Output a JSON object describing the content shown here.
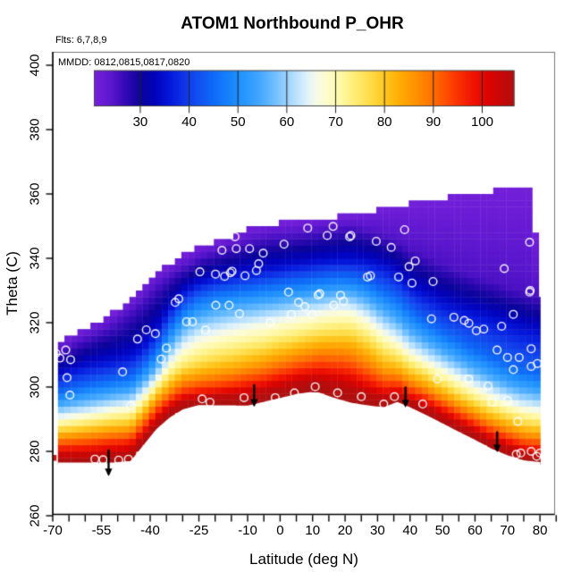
{
  "chart_data": {
    "type": "heatmap",
    "title": "ATOM1 Northbound P_OHR",
    "xlabel": "Latitude (deg N)",
    "ylabel": "Theta (C)",
    "annotations": {
      "flights": "Flts: 6,7,8,9",
      "dates": "MMDD: 0812,0815,0817,0820"
    },
    "xaxis": {
      "range": [
        -70,
        85
      ],
      "tick_step_minor": 5,
      "tick_labels": [
        -70,
        -55,
        -40,
        -25,
        -10,
        0,
        10,
        20,
        30,
        40,
        50,
        60,
        70,
        80
      ]
    },
    "yaxis": {
      "range": [
        260,
        404
      ],
      "tick_labels": [
        260,
        280,
        300,
        320,
        340,
        360,
        380,
        400
      ]
    },
    "colorbar": {
      "range": [
        20.5,
        106.5
      ],
      "ticks": [
        30,
        40,
        50,
        60,
        70,
        80,
        90,
        100
      ],
      "position": "top"
    },
    "palette_stops": [
      [
        20,
        "#7B22DD"
      ],
      [
        24,
        "#5A16CC"
      ],
      [
        27,
        "#3109B4"
      ],
      [
        30,
        "#0B049A"
      ],
      [
        33,
        "#0202BC"
      ],
      [
        36,
        "#0418DC"
      ],
      [
        40,
        "#1240EC"
      ],
      [
        45,
        "#0E6CF8"
      ],
      [
        50,
        "#1E90FF"
      ],
      [
        54,
        "#3FA5FF"
      ],
      [
        58,
        "#79C3FF"
      ],
      [
        61,
        "#AEDCFF"
      ],
      [
        64,
        "#DFF2FB"
      ],
      [
        66,
        "#F6FBE8"
      ],
      [
        68,
        "#FEFCCE"
      ],
      [
        71,
        "#FFF8A6"
      ],
      [
        74,
        "#FFEC72"
      ],
      [
        77,
        "#FFDC48"
      ],
      [
        80,
        "#FFC61E"
      ],
      [
        83,
        "#FFAD05"
      ],
      [
        86,
        "#FF9400"
      ],
      [
        89,
        "#FF7800"
      ],
      [
        92,
        "#FF5500"
      ],
      [
        95,
        "#FB3000"
      ],
      [
        98,
        "#F01400"
      ],
      [
        101,
        "#DE0400"
      ],
      [
        104,
        "#C50808"
      ],
      [
        108,
        "#A81111"
      ]
    ],
    "field": {
      "description": "Each profile row: [lat, theta_bottom, theta at P_OHR levels 105,95,85,75,65,55,45,35,25, theta_top]",
      "levels": [
        105,
        95,
        85,
        75,
        65,
        55,
        45,
        35,
        25
      ],
      "profiles": [
        [
          -69.6,
          276.5,
          278.5,
          281.5,
          284.5,
          287.5,
          290.5,
          294,
          298,
          303.5,
          310,
          313.5
        ],
        [
          -60,
          276.5,
          278.5,
          282,
          285.5,
          288.5,
          292,
          296,
          300.5,
          306.5,
          315,
          318.5
        ],
        [
          -52,
          276.5,
          279,
          283,
          286.5,
          290,
          293.5,
          297.5,
          302,
          308,
          319,
          322.5
        ],
        [
          -46,
          277,
          280,
          283.5,
          287,
          290.5,
          294.5,
          298.5,
          303,
          309.5,
          323.5,
          327.5
        ],
        [
          -42,
          282,
          284.5,
          287.5,
          291,
          294.5,
          298,
          302,
          306.5,
          312.5,
          327.5,
          331.5
        ],
        [
          -38,
          287,
          289.5,
          292.5,
          296,
          299.5,
          302.5,
          306.5,
          311.5,
          317.5,
          331.5,
          335.5
        ],
        [
          -34,
          290.5,
          293,
          296,
          299.5,
          303.5,
          308,
          313,
          318.5,
          324.5,
          334.5,
          338.5
        ],
        [
          -30,
          293,
          295.5,
          298.5,
          302.5,
          306.5,
          312.5,
          318.5,
          324,
          329.5,
          337,
          341
        ],
        [
          -25,
          294.4,
          296.5,
          299.5,
          303.5,
          308.5,
          315.5,
          322,
          327.5,
          332.5,
          340,
          343.5
        ],
        [
          -20,
          294.3,
          297,
          300,
          304.5,
          310,
          317,
          323.5,
          329,
          334,
          342,
          345
        ],
        [
          -15,
          294.3,
          297.3,
          300.8,
          305.3,
          311,
          318.3,
          324.5,
          329.8,
          334.8,
          343.5,
          347
        ],
        [
          -10,
          294.2,
          297.7,
          301.7,
          306.5,
          312.2,
          319.3,
          325.3,
          330.5,
          335.8,
          345,
          349.5
        ],
        [
          -5,
          295.4,
          298.7,
          302.7,
          307.7,
          313.2,
          320.2,
          326,
          331.2,
          336.5,
          346.5,
          350.5
        ],
        [
          0,
          296.6,
          300,
          304.2,
          309.2,
          314.7,
          321.3,
          326.8,
          332,
          337.2,
          347,
          351
        ],
        [
          5,
          297.8,
          301.2,
          305.5,
          310.5,
          315.8,
          322.2,
          327.5,
          332.7,
          338,
          347.5,
          351.5
        ],
        [
          9,
          298.4,
          302,
          306.3,
          311.5,
          316.8,
          323,
          328.2,
          333.2,
          338.5,
          348,
          352
        ],
        [
          12,
          298.3,
          302.2,
          306.8,
          312.2,
          317.5,
          323.5,
          328.6,
          333.6,
          339,
          348.5,
          352.5
        ],
        [
          15,
          297.2,
          301.5,
          306.5,
          312.2,
          317.8,
          324,
          329,
          334,
          339.2,
          349,
          352.5
        ],
        [
          18,
          296.2,
          301,
          306.3,
          312.3,
          318.2,
          324.4,
          329.4,
          334.2,
          339.4,
          349.5,
          353
        ],
        [
          22,
          295.1,
          300,
          305.5,
          311.8,
          318,
          324.2,
          329.2,
          334,
          339.5,
          350,
          353.5
        ],
        [
          27,
          294.3,
          298,
          303,
          309,
          315.5,
          321.5,
          327,
          332.5,
          339,
          348.5,
          354.5
        ],
        [
          32,
          293.7,
          296.5,
          300.5,
          305.5,
          311.5,
          317.5,
          323.5,
          329.5,
          337.5,
          347,
          355.5
        ],
        [
          36,
          295.4,
          297.5,
          300.8,
          304.8,
          309.8,
          315,
          321,
          327.5,
          335.5,
          345.5,
          356.5
        ],
        [
          40,
          293.7,
          295.8,
          298.8,
          302.5,
          307,
          311.5,
          317.3,
          323.8,
          331.3,
          343,
          357
        ],
        [
          45,
          291.3,
          293.8,
          296.8,
          300.2,
          304.5,
          308.7,
          314,
          320,
          328.5,
          341,
          358
        ],
        [
          50,
          288.7,
          291,
          294,
          297.5,
          301.5,
          306,
          311,
          317,
          326,
          338.5,
          358.5
        ],
        [
          55,
          286.1,
          288.4,
          291.3,
          294.8,
          298.7,
          303.2,
          308.2,
          314.2,
          324.3,
          336.5,
          359.5
        ],
        [
          60,
          283.6,
          286,
          288.8,
          292.2,
          296,
          300.5,
          305.5,
          311.5,
          323,
          334.5,
          360.5
        ],
        [
          65,
          280.9,
          283.3,
          286.2,
          289.7,
          293.6,
          298,
          303,
          309,
          321.3,
          333.3,
          361
        ],
        [
          70,
          278.8,
          281.2,
          284.2,
          287.7,
          291.6,
          295.8,
          300.8,
          306.6,
          319.7,
          331.5,
          361
        ],
        [
          75,
          277.2,
          279.2,
          282.2,
          285.8,
          289.8,
          294,
          299,
          305,
          318,
          330,
          361.5
        ],
        [
          76.9,
          277,
          279,
          282,
          285.5,
          289.5,
          293.8,
          298.7,
          304.6,
          317.6,
          329.4,
          362
        ],
        [
          77.1,
          277,
          279,
          282,
          285.5,
          289.5,
          293.7,
          298.6,
          304.5,
          317.5,
          329.3,
          347
        ],
        [
          78.9,
          276.8,
          278.8,
          281.8,
          285.3,
          289.2,
          293.3,
          298.2,
          304,
          317,
          329,
          347
        ],
        [
          79.1,
          276.8,
          278.8,
          281.8,
          285.3,
          289.2,
          293.3,
          298.2,
          304,
          317,
          328.8,
          327
        ],
        [
          81,
          276.6,
          278.6,
          281.6,
          285,
          289,
          293,
          298,
          303.5,
          316.5,
          328.5,
          327
        ]
      ]
    },
    "sample_points": [
      [
        -69,
        310.5
      ],
      [
        -67.8,
        309
      ],
      [
        -66,
        311.5
      ],
      [
        -64.5,
        308.5
      ],
      [
        -65.6,
        302.9
      ],
      [
        -64.7,
        297.5
      ],
      [
        -57,
        277.6
      ],
      [
        -54.5,
        277.4
      ],
      [
        -49.7,
        277.3
      ],
      [
        -46.7,
        277.6
      ],
      [
        -48.5,
        304.7
      ],
      [
        -46,
        294.2
      ],
      [
        -43.9,
        314.9
      ],
      [
        -41.2,
        317.8
      ],
      [
        -38.4,
        316.6
      ],
      [
        -36.6,
        308.7
      ],
      [
        -35,
        312.1
      ],
      [
        -32.3,
        326.3
      ],
      [
        -31.2,
        327.4
      ],
      [
        -28.8,
        320.3
      ],
      [
        -27,
        320.3
      ],
      [
        -23,
        317.7
      ],
      [
        -19.8,
        325.4
      ],
      [
        -15.7,
        325.4
      ],
      [
        -12.5,
        322.8
      ],
      [
        -24.7,
        335.8
      ],
      [
        -19.9,
        335.1
      ],
      [
        -17.1,
        334.4
      ],
      [
        -15.3,
        335.5
      ],
      [
        -14.8,
        336
      ],
      [
        -10.8,
        334.6
      ],
      [
        -7.3,
        336.2
      ],
      [
        -6.6,
        338.3
      ],
      [
        -17.9,
        342.5
      ],
      [
        -13.9,
        346.7
      ],
      [
        -13.5,
        343
      ],
      [
        -9.4,
        343
      ],
      [
        -5.2,
        341.6
      ],
      [
        1.2,
        344.4
      ],
      [
        8.5,
        349.4
      ],
      [
        14.5,
        347.1
      ],
      [
        16.3,
        349.9
      ],
      [
        21.4,
        346.7
      ],
      [
        21.8,
        347.1
      ],
      [
        29.6,
        345.3
      ],
      [
        34.2,
        343.4
      ],
      [
        38.3,
        348.9
      ],
      [
        -3.1,
        320
      ],
      [
        2.6,
        329.5
      ],
      [
        3.5,
        322.6
      ],
      [
        5.7,
        326.3
      ],
      [
        7.6,
        325
      ],
      [
        9.9,
        322.6
      ],
      [
        11.7,
        328.6
      ],
      [
        12.2,
        329
      ],
      [
        16.5,
        325.4
      ],
      [
        18.6,
        328.5
      ],
      [
        19.5,
        326.7
      ],
      [
        26.9,
        334.2
      ],
      [
        27.8,
        334.6
      ],
      [
        36.5,
        334.2
      ],
      [
        39.7,
        337.4
      ],
      [
        40.6,
        332.3
      ],
      [
        41.6,
        339.2
      ],
      [
        47.1,
        332.8
      ],
      [
        -24,
        296.3
      ],
      [
        -21.6,
        295.3
      ],
      [
        -11.1,
        296.7
      ],
      [
        -1.5,
        296.7
      ],
      [
        4.4,
        298.2
      ],
      [
        10.8,
        300.1
      ],
      [
        17.7,
        298.2
      ],
      [
        25,
        297
      ],
      [
        31.9,
        294.7
      ],
      [
        35.2,
        297
      ],
      [
        43.9,
        294.7
      ],
      [
        46.6,
        321.2
      ],
      [
        48.4,
        302.5
      ],
      [
        53.5,
        321.7
      ],
      [
        56.7,
        320.7
      ],
      [
        58.1,
        319.8
      ],
      [
        60.4,
        317.5
      ],
      [
        62.7,
        318
      ],
      [
        68.2,
        318.9
      ],
      [
        71.8,
        322.6
      ],
      [
        76.8,
        329.5
      ],
      [
        58,
        302.5
      ],
      [
        64,
        300.3
      ],
      [
        65.4,
        295.3
      ],
      [
        70,
        295.8
      ],
      [
        66.8,
        311.5
      ],
      [
        70,
        309.2
      ],
      [
        71.8,
        305.4
      ],
      [
        73.6,
        309.2
      ],
      [
        77.3,
        311.9
      ],
      [
        77.3,
        306.4
      ],
      [
        79.2,
        307.3
      ],
      [
        77,
        330
      ],
      [
        69,
        336.8
      ],
      [
        76.8,
        345
      ],
      [
        73.2,
        289.3
      ],
      [
        72.7,
        279.1
      ],
      [
        74.1,
        279.5
      ],
      [
        77.3,
        280
      ],
      [
        79,
        278.5
      ],
      [
        80,
        279.5
      ]
    ],
    "arrows": [
      {
        "lat": -52.8,
        "theta_from": 280.6,
        "theta_to": 272.3
      },
      {
        "lat": -8.0,
        "theta_from": 300.8,
        "theta_to": 293.8
      },
      {
        "lat": 38.6,
        "theta_from": 300.1,
        "theta_to": 293.6
      },
      {
        "lat": 66.8,
        "theta_from": 286.2,
        "theta_to": 279.7
      }
    ]
  }
}
